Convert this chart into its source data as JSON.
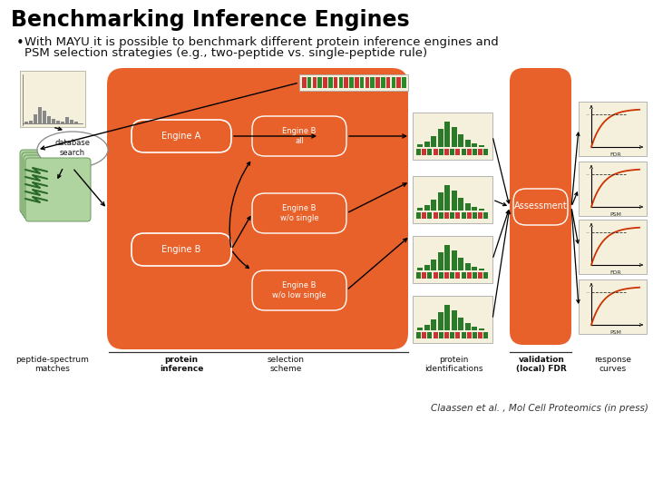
{
  "title": "Benchmarking Inference Engines",
  "bullet_line1": "With MAYU it is possible to benchmark different protein inference engines and",
  "bullet_line2": "PSM selection strategies (e.g., two-peptide vs. single-peptide rule)",
  "citation": "Claassen et al. , Mol Cell Proteomics (in press)",
  "bg_color": "#ffffff",
  "title_color": "#000000",
  "orange_color": "#E8612A",
  "cream_color": "#F5F0DC",
  "dark_text": "#111111",
  "title_fontsize": 17,
  "bullet_fontsize": 9.5,
  "label_fontsize": 6.5,
  "citation_fontsize": 7.5
}
